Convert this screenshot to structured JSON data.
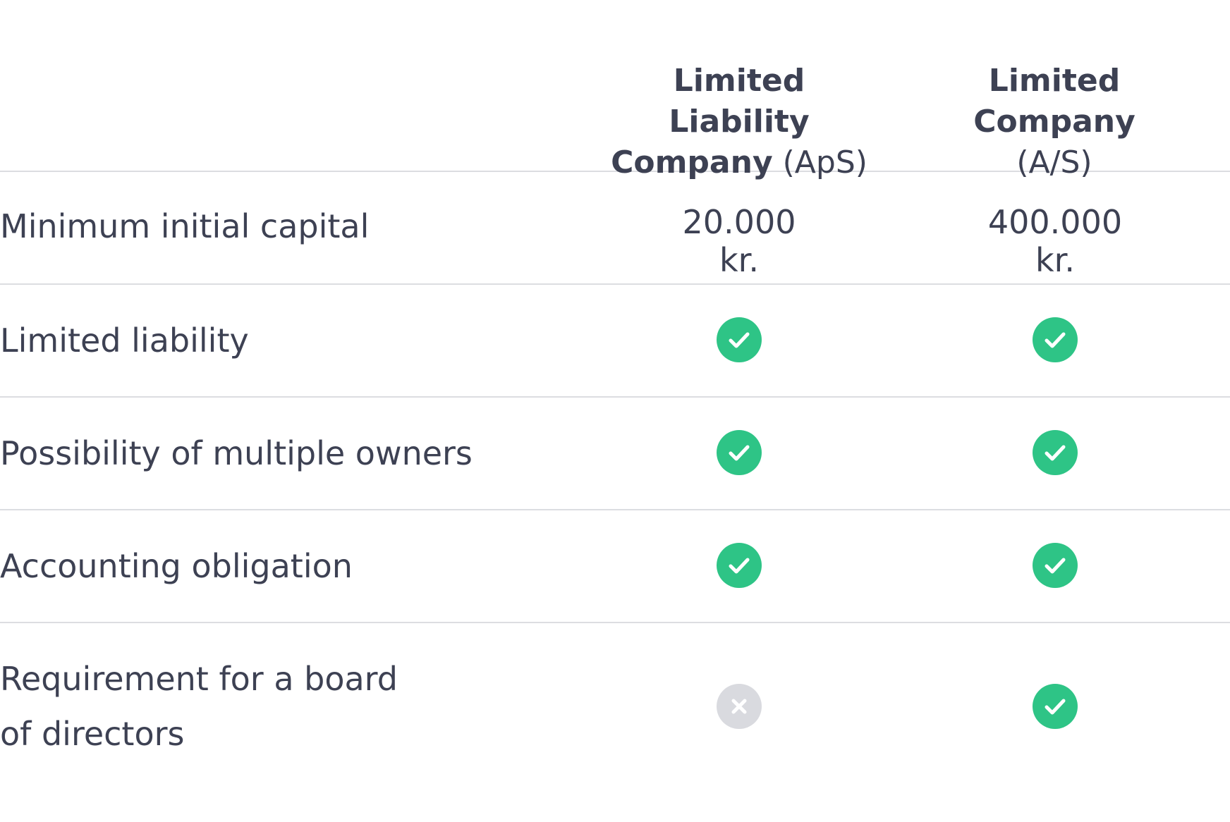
{
  "columns": [
    {
      "bold": "Limited Liability\nCompany",
      "abbr": "(ApS)"
    },
    {
      "bold": "Limited Company",
      "abbr": "(A/S)"
    }
  ],
  "rows": [
    {
      "label": "Minimum initial capital",
      "aps": "20.000 kr.",
      "as": "400.000 kr."
    },
    {
      "label": "Limited liability",
      "aps_icon": "check-icon",
      "as_icon": "check-icon"
    },
    {
      "label": "Possibility of multiple owners",
      "aps_icon": "check-icon",
      "as_icon": "check-icon"
    },
    {
      "label": "Accounting obligation",
      "aps_icon": "check-icon",
      "as_icon": "check-icon"
    },
    {
      "label": "Requirement for a board\nof directors",
      "aps_icon": "cross-icon",
      "as_icon": "check-icon"
    }
  ],
  "colors": {
    "check": "#2ec486",
    "cross": "#d9dadf",
    "text": "#3d4153",
    "divider": "#dcdde1"
  }
}
